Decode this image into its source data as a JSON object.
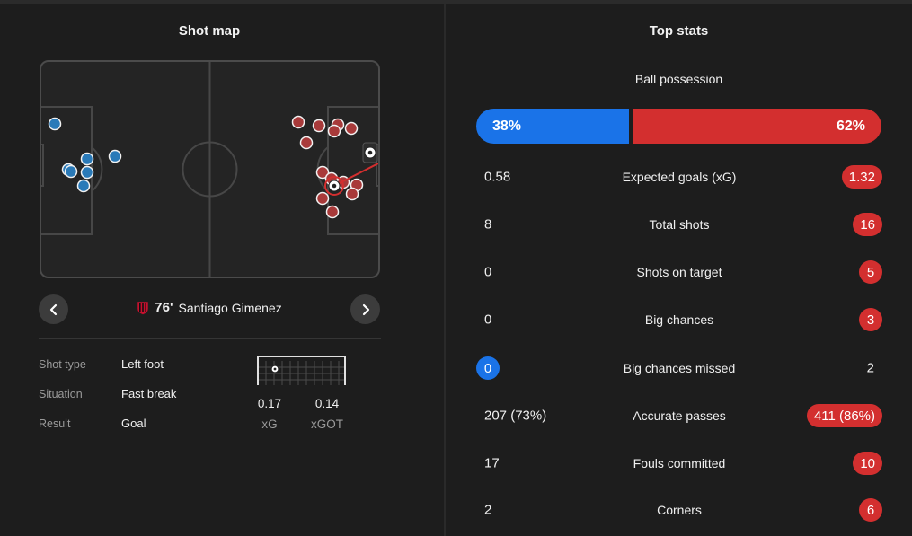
{
  "shot_map": {
    "title": "Shot map",
    "selected_shot": {
      "minute": "76'",
      "player": "Santiago Gimenez",
      "details": [
        {
          "label": "Shot type",
          "value": "Left foot"
        },
        {
          "label": "Situation",
          "value": "Fast break"
        },
        {
          "label": "Result",
          "value": "Goal"
        }
      ],
      "xg": "0.17",
      "xg_label": "xG",
      "xgot": "0.14",
      "xgot_label": "xGOT"
    },
    "icons": {
      "prev": "chevron-left-icon",
      "next": "chevron-right-icon",
      "club": "ac-milan-crest-icon",
      "ball": "football-icon"
    },
    "colors": {
      "home": "#2a7ab8",
      "away": "#a83a3a"
    }
  },
  "top_stats": {
    "title": "Top stats",
    "possession": {
      "label": "Ball possession",
      "home": "38%",
      "away": "62%"
    },
    "rows": [
      {
        "label": "Expected goals (xG)",
        "home": "0.58",
        "away": "1.32",
        "highlight": "away"
      },
      {
        "label": "Total shots",
        "home": "8",
        "away": "16",
        "highlight": "away"
      },
      {
        "label": "Shots on target",
        "home": "0",
        "away": "5",
        "highlight": "away"
      },
      {
        "label": "Big chances",
        "home": "0",
        "away": "3",
        "highlight": "away"
      },
      {
        "label": "Big chances missed",
        "home": "0",
        "away": "2",
        "highlight": "home"
      },
      {
        "label": "Accurate passes",
        "home": "207 (73%)",
        "away": "411 (86%)",
        "highlight": "away"
      },
      {
        "label": "Fouls committed",
        "home": "17",
        "away": "10",
        "highlight": "away"
      },
      {
        "label": "Corners",
        "home": "2",
        "away": "6",
        "highlight": "away"
      }
    ],
    "colors": {
      "home": "#1a73e8",
      "away": "#d32f2f"
    }
  }
}
